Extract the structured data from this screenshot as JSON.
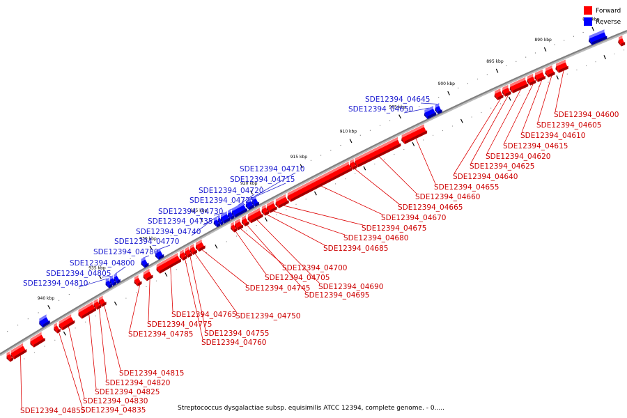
{
  "legend": {
    "forward_label": "Forward",
    "reverse_label": "Reverse",
    "forward_color": "#ff0000",
    "reverse_color": "#0000ff"
  },
  "caption": "Streptococcus dysgalactiae subsp. equisimilis ATCC 12394, complete genome. - 0.....",
  "chart_data": {
    "type": "genome-map",
    "axis_unit": "kbp",
    "axis_range": [
      882,
      945
    ],
    "ticks": [
      885,
      890,
      895,
      900,
      905,
      910,
      915,
      920,
      925,
      930,
      935,
      940
    ],
    "genes": [
      {
        "id": "SDE12394_04600",
        "strand": "forward",
        "start": 888.6,
        "end": 889.6
      },
      {
        "id": "SDE12394_04605",
        "strand": "forward",
        "start": 890.0,
        "end": 890.7
      },
      {
        "id": "SDE12394_04610",
        "strand": "forward",
        "start": 891.0,
        "end": 891.8
      },
      {
        "id": "SDE12394_04615",
        "strand": "forward",
        "start": 892.0,
        "end": 892.6
      },
      {
        "id": "SDE12394_04620",
        "strand": "forward",
        "start": 892.8,
        "end": 894.4
      },
      {
        "id": "SDE12394_04625",
        "strand": "forward",
        "start": 894.6,
        "end": 895.2
      },
      {
        "id": "SDE12394_04640",
        "strand": "forward",
        "start": 895.4,
        "end": 896.0
      },
      {
        "id": "SDE12394_04645",
        "strand": "reverse",
        "start": 901.2,
        "end": 901.6
      },
      {
        "id": "SDE12394_04650",
        "strand": "reverse",
        "start": 901.8,
        "end": 902.7
      },
      {
        "id": "SDE12394_04655",
        "strand": "forward",
        "start": 903.3,
        "end": 905.6
      },
      {
        "id": "SDE12394_04660",
        "strand": "forward",
        "start": 906.0,
        "end": 910.4
      },
      {
        "id": "SDE12394_04665",
        "strand": "forward",
        "start": 910.5,
        "end": 910.9
      },
      {
        "id": "SDE12394_04670",
        "strand": "forward",
        "start": 911.0,
        "end": 917.2
      },
      {
        "id": "SDE12394_04675",
        "strand": "forward",
        "start": 917.4,
        "end": 918.4
      },
      {
        "id": "SDE12394_04680",
        "strand": "forward",
        "start": 918.6,
        "end": 919.3
      },
      {
        "id": "SDE12394_04685",
        "strand": "forward",
        "start": 919.4,
        "end": 919.8
      },
      {
        "id": "SDE12394_04690",
        "strand": "forward",
        "start": 920.0,
        "end": 921.2
      },
      {
        "id": "SDE12394_04695",
        "strand": "forward",
        "start": 921.4,
        "end": 921.8
      },
      {
        "id": "SDE12394_04700",
        "strand": "forward",
        "start": 922.0,
        "end": 922.5
      },
      {
        "id": "SDE12394_04705",
        "strand": "forward",
        "start": 922.6,
        "end": 922.9
      },
      {
        "id": "SDE12394_04710",
        "strand": "reverse",
        "start": 919.8,
        "end": 920.2
      },
      {
        "id": "SDE12394_04715",
        "strand": "reverse",
        "start": 920.3,
        "end": 920.8
      },
      {
        "id": "SDE12394_04720",
        "strand": "reverse",
        "start": 921.0,
        "end": 922.2
      },
      {
        "id": "SDE12394_04725",
        "strand": "reverse",
        "start": 922.3,
        "end": 922.6
      },
      {
        "id": "SDE12394_04730",
        "strand": "reverse",
        "start": 922.7,
        "end": 923.3
      },
      {
        "id": "SDE12394_04735",
        "strand": "reverse",
        "start": 923.4,
        "end": 923.6
      },
      {
        "id": "SDE12394_04740",
        "strand": "reverse",
        "start": 923.7,
        "end": 924.0
      },
      {
        "id": "SDE12394_04745",
        "strand": "forward",
        "start": 925.8,
        "end": 926.4
      },
      {
        "id": "SDE12394_04750",
        "strand": "forward",
        "start": 926.6,
        "end": 927.0
      },
      {
        "id": "SDE12394_04755",
        "strand": "forward",
        "start": 927.1,
        "end": 927.5
      },
      {
        "id": "SDE12394_04760",
        "strand": "forward",
        "start": 927.6,
        "end": 928.0
      },
      {
        "id": "SDE12394_04765",
        "strand": "forward",
        "start": 928.2,
        "end": 930.3
      },
      {
        "id": "SDE12394_04770",
        "strand": "reverse",
        "start": 929.3,
        "end": 929.8
      },
      {
        "id": "SDE12394_04775",
        "strand": "forward",
        "start": 931.0,
        "end": 931.6
      },
      {
        "id": "SDE12394_04780",
        "strand": "reverse",
        "start": 930.8,
        "end": 931.2
      },
      {
        "id": "SDE12394_04785",
        "strand": "forward",
        "start": 932.1,
        "end": 932.5
      },
      {
        "id": "SDE12394_04800",
        "strand": "reverse",
        "start": 933.6,
        "end": 933.9
      },
      {
        "id": "SDE12394_04805",
        "strand": "reverse",
        "start": 934.0,
        "end": 934.3
      },
      {
        "id": "SDE12394_04810",
        "strand": "reverse",
        "start": 934.4,
        "end": 934.7
      },
      {
        "id": "SDE12394_04815",
        "strand": "forward",
        "start": 935.6,
        "end": 936.0
      },
      {
        "id": "SDE12394_04820",
        "strand": "forward",
        "start": 936.1,
        "end": 936.5
      },
      {
        "id": "SDE12394_04825",
        "strand": "forward",
        "start": 936.6,
        "end": 938.0
      },
      {
        "id": "SDE12394_04830",
        "strand": "forward",
        "start": 938.7,
        "end": 939.9
      },
      {
        "id": "SDE12394_04835",
        "strand": "forward",
        "start": 940.1,
        "end": 940.4
      },
      {
        "id": "SDE12394_04855",
        "strand": "forward",
        "start": 943.4,
        "end": 944.6
      }
    ],
    "extra_features": [
      {
        "strand": "forward",
        "start": 882.6,
        "end": 883.0
      },
      {
        "strand": "reverse",
        "start": 884.0,
        "end": 885.6
      },
      {
        "strand": "reverse",
        "start": 940.5,
        "end": 941.2
      },
      {
        "strand": "forward",
        "start": 941.6,
        "end": 942.7
      },
      {
        "strand": "forward",
        "start": 944.7,
        "end": 945.0
      }
    ]
  }
}
